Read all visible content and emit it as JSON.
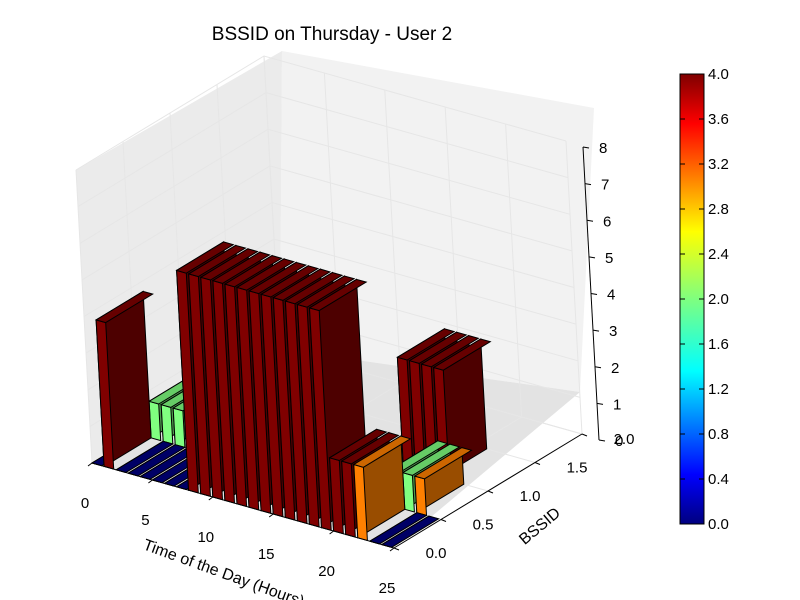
{
  "chart_data": {
    "type": "bar3d",
    "title": "BSSID on Thursday - User 2",
    "xlabel": "Time of the Day (Hours)",
    "ylabel": "BSSID",
    "zlabel": "",
    "xlim": [
      0,
      25
    ],
    "ylim": [
      0.0,
      2.0
    ],
    "zlim": [
      0,
      8
    ],
    "xticks": [
      "0",
      "5",
      "10",
      "15",
      "20",
      "25"
    ],
    "yticks": [
      "0.0",
      "0.5",
      "1.0",
      "1.5",
      "2.0"
    ],
    "zticks": [
      "0",
      "1",
      "2",
      "3",
      "4",
      "5",
      "6",
      "7",
      "8"
    ],
    "colorbar": {
      "min": 0.0,
      "max": 4.0,
      "ticks": [
        "0.0",
        "0.4",
        "0.8",
        "1.2",
        "1.6",
        "2.0",
        "2.4",
        "2.8",
        "3.2",
        "3.6",
        "4.0"
      ],
      "colormap": "jet"
    },
    "bars": [
      {
        "x": 0,
        "y": 0,
        "value": 0,
        "color_value": 0
      },
      {
        "x": 1,
        "y": 0,
        "value": 4,
        "color_value": 4
      },
      {
        "x": 2,
        "y": 0,
        "value": 0,
        "color_value": 0
      },
      {
        "x": 3,
        "y": 0,
        "value": 0,
        "color_value": 0
      },
      {
        "x": 4,
        "y": 0,
        "value": 0,
        "color_value": 0
      },
      {
        "x": 5,
        "y": 0,
        "value": 0,
        "color_value": 0
      },
      {
        "x": 6,
        "y": 0,
        "value": 0,
        "color_value": 0
      },
      {
        "x": 7,
        "y": 0,
        "value": 0,
        "color_value": 0
      },
      {
        "x": 8,
        "y": 0,
        "value": 6,
        "color_value": 4
      },
      {
        "x": 9,
        "y": 0,
        "value": 6,
        "color_value": 4
      },
      {
        "x": 10,
        "y": 0,
        "value": 6,
        "color_value": 4
      },
      {
        "x": 11,
        "y": 0,
        "value": 6,
        "color_value": 4
      },
      {
        "x": 12,
        "y": 0,
        "value": 6,
        "color_value": 4
      },
      {
        "x": 13,
        "y": 0,
        "value": 6,
        "color_value": 4
      },
      {
        "x": 14,
        "y": 0,
        "value": 6,
        "color_value": 4
      },
      {
        "x": 15,
        "y": 0,
        "value": 6,
        "color_value": 4
      },
      {
        "x": 16,
        "y": 0,
        "value": 6,
        "color_value": 4
      },
      {
        "x": 17,
        "y": 0,
        "value": 6,
        "color_value": 4
      },
      {
        "x": 18,
        "y": 0,
        "value": 6,
        "color_value": 4
      },
      {
        "x": 19,
        "y": 0,
        "value": 6,
        "color_value": 4
      },
      {
        "x": 20,
        "y": 0,
        "value": 2,
        "color_value": 4
      },
      {
        "x": 21,
        "y": 0,
        "value": 2,
        "color_value": 4
      },
      {
        "x": 22,
        "y": 0,
        "value": 2,
        "color_value": 3
      },
      {
        "x": 23,
        "y": 0,
        "value": 0,
        "color_value": 0
      },
      {
        "x": 24,
        "y": 0,
        "value": 0,
        "color_value": 0
      },
      {
        "x": 1,
        "y": 1,
        "value": 1,
        "color_value": 2
      },
      {
        "x": 2,
        "y": 1,
        "value": 1,
        "color_value": 2
      },
      {
        "x": 3,
        "y": 1,
        "value": 1,
        "color_value": 2
      },
      {
        "x": 4,
        "y": 1,
        "value": 1,
        "color_value": 2
      },
      {
        "x": 5,
        "y": 1,
        "value": 1,
        "color_value": 2
      },
      {
        "x": 6,
        "y": 1,
        "value": 1,
        "color_value": 2
      },
      {
        "x": 7,
        "y": 1,
        "value": 1,
        "color_value": 2
      },
      {
        "x": 21,
        "y": 1,
        "value": 1,
        "color_value": 2
      },
      {
        "x": 22,
        "y": 1,
        "value": 1,
        "color_value": 2
      },
      {
        "x": 23,
        "y": 1,
        "value": 1,
        "color_value": 3
      },
      {
        "x": 18,
        "y": 2,
        "value": 3,
        "color_value": 4
      },
      {
        "x": 19,
        "y": 2,
        "value": 3,
        "color_value": 4
      },
      {
        "x": 20,
        "y": 2,
        "value": 3,
        "color_value": 4
      },
      {
        "x": 21,
        "y": 2,
        "value": 3,
        "color_value": 4
      }
    ]
  }
}
